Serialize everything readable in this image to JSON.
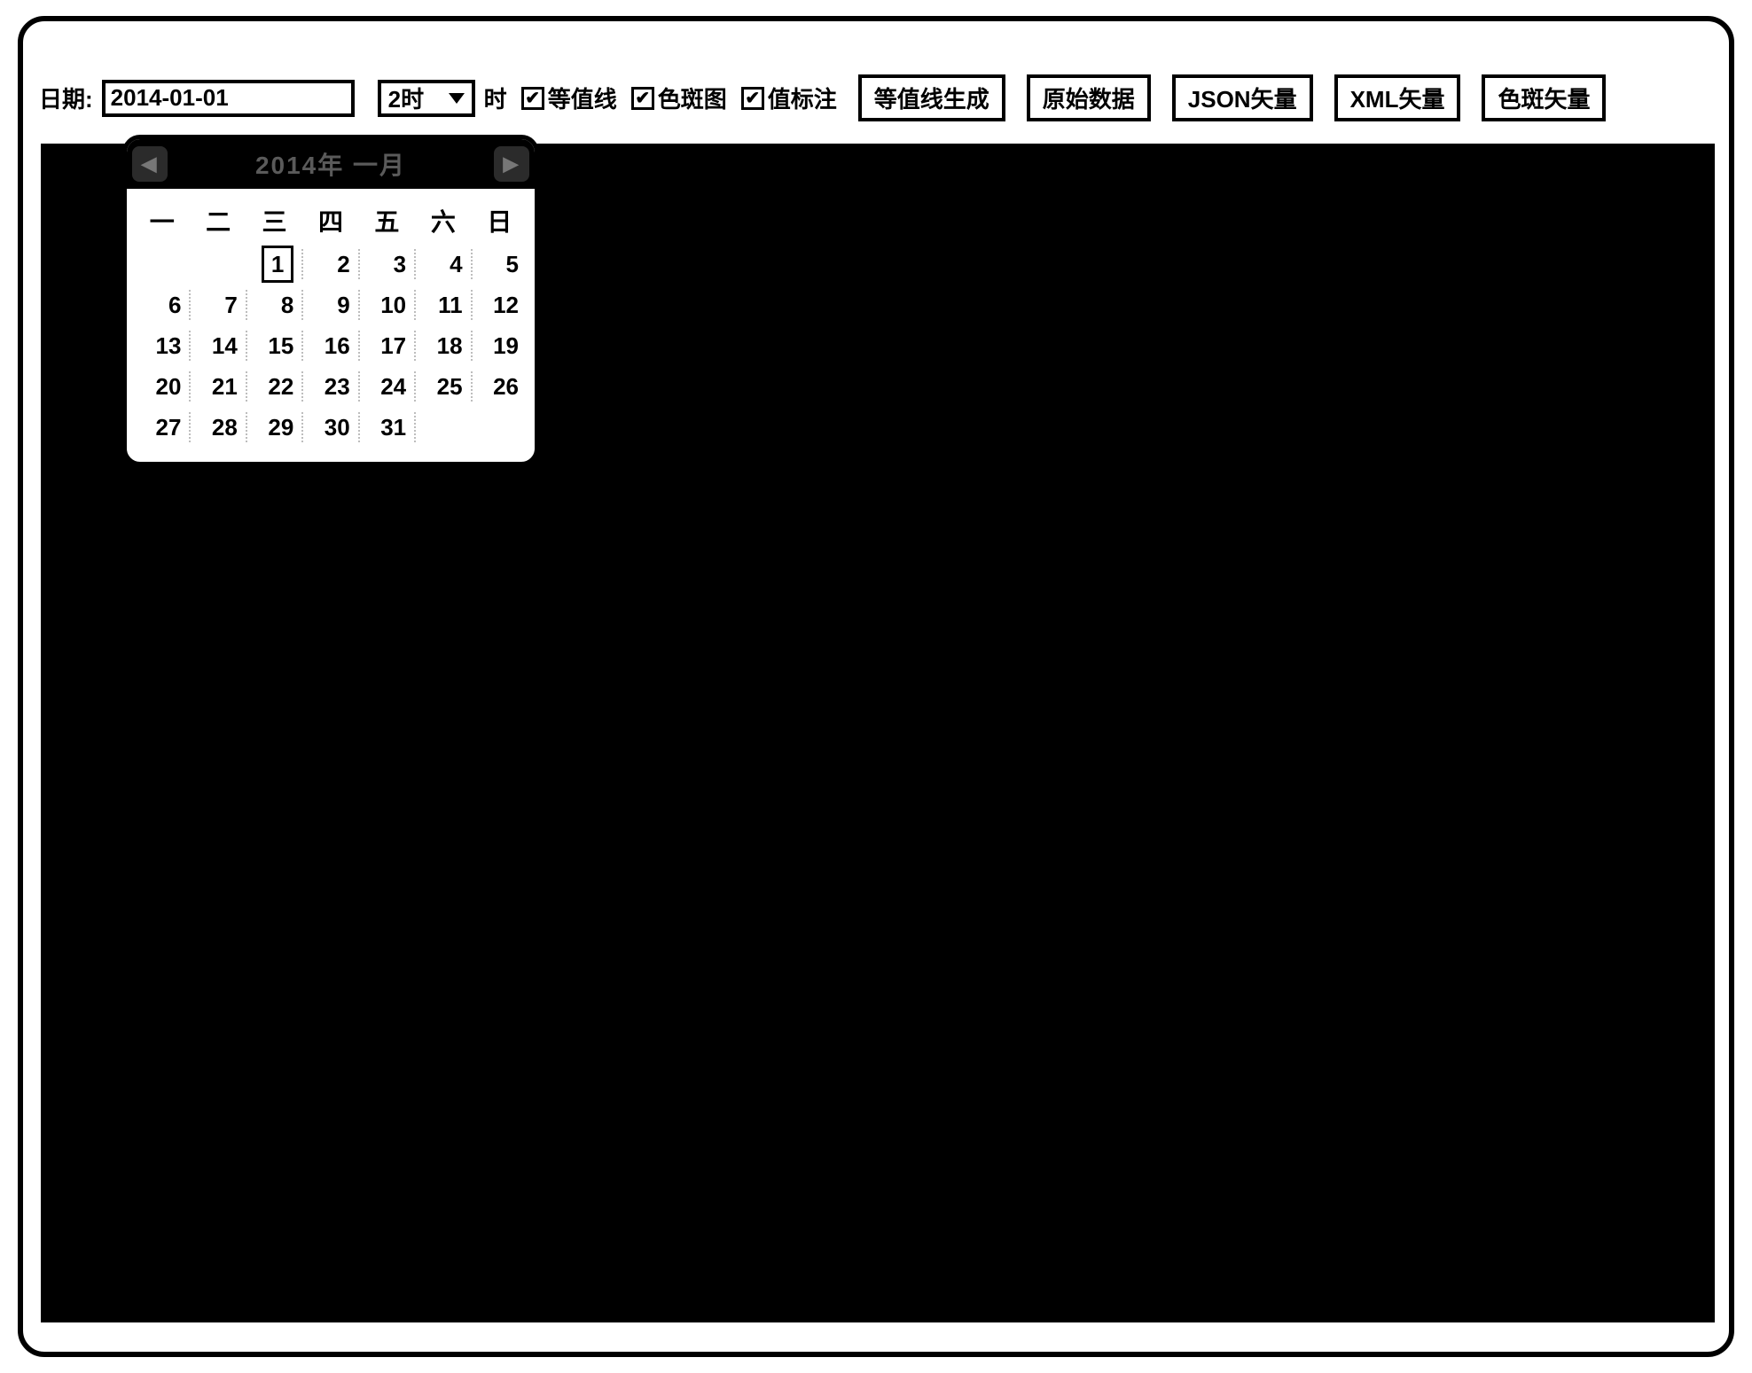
{
  "frame": {
    "border_color": "#000000",
    "border_width": 6,
    "border_radius": 30,
    "background": "#ffffff"
  },
  "toolbar": {
    "date_label": "日期:",
    "date_value": "2014-01-01",
    "hour_select_value": "2时",
    "hour_suffix": "时",
    "checkboxes": [
      {
        "label": "等值线",
        "checked": true
      },
      {
        "label": "色斑图",
        "checked": true
      },
      {
        "label": "值标注",
        "checked": true
      }
    ],
    "buttons": [
      "等值线生成",
      "原始数据",
      "JSON矢量",
      "XML矢量",
      "色斑矢量"
    ]
  },
  "canvas": {
    "background": "#000000"
  },
  "datepicker": {
    "title": "2014年 一月",
    "prev_icon": "◀",
    "next_icon": "▶",
    "dow": [
      "一",
      "二",
      "三",
      "四",
      "五",
      "六",
      "日"
    ],
    "weeks": [
      [
        "",
        "",
        "1",
        "2",
        "3",
        "4",
        "5"
      ],
      [
        "6",
        "7",
        "8",
        "9",
        "10",
        "11",
        "12"
      ],
      [
        "13",
        "14",
        "15",
        "16",
        "17",
        "18",
        "19"
      ],
      [
        "20",
        "21",
        "22",
        "23",
        "24",
        "25",
        "26"
      ],
      [
        "27",
        "28",
        "29",
        "30",
        "31",
        "",
        ""
      ]
    ],
    "selected": "1",
    "header_bg": "#000000",
    "header_text_color": "#5a5a5a",
    "cell_separator_color": "#bdbdbd"
  }
}
